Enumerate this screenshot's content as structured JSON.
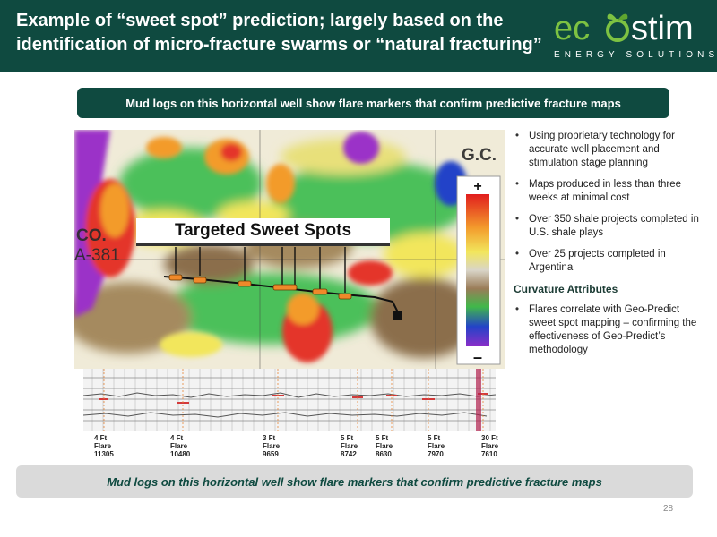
{
  "header": {
    "title": "Example of “sweet spot” prediction; largely based on the identification of micro-fracture swarms or “natural fracturing”",
    "logo_word": "ecostim",
    "logo_sub": "ENERGY SOLUTIONS"
  },
  "banner": {
    "text": "Mud logs on this horizontal well show flare markers that confirm predictive fracture maps"
  },
  "map": {
    "sweet_spot_label": "Targeted Sweet Spots",
    "label_co": "CO.",
    "label_a381": "A-381",
    "label_gc": "G.C.",
    "scale_plus": "+",
    "scale_minus": "–"
  },
  "flares": [
    {
      "size": "4 Ft",
      "word": "Flare",
      "depth": "11305"
    },
    {
      "size": "4 Ft",
      "word": "Flare",
      "depth": "10480"
    },
    {
      "size": "3 Ft",
      "word": "Flare",
      "depth": "9659"
    },
    {
      "size": "5 Ft",
      "word": "Flare",
      "depth": "8742"
    },
    {
      "size": "5 Ft",
      "word": "Flare",
      "depth": "8630"
    },
    {
      "size": "5 Ft",
      "word": "Flare",
      "depth": "7970"
    },
    {
      "size": "30 Ft",
      "word": "Flare",
      "depth": "7610"
    }
  ],
  "bullets": [
    "Using proprietary technology for accurate well placement and stimulation stage planning",
    "Maps produced in less than three weeks at minimal cost",
    "Over 350 shale projects completed in U.S. shale plays",
    "Over 25 projects completed in Argentina"
  ],
  "curvature": {
    "title": "Curvature Attributes",
    "bullet": "Flares correlate with Geo-Predict sweet spot mapping – confirming the effectiveness of Geo-Predict’s methodology"
  },
  "caption": {
    "text": "Mud logs on this horizontal well show flare markers that confirm predictive fracture maps"
  },
  "page_number": "28",
  "colors": {
    "header_bg": "#0f4a40",
    "brand_green": "#7dc242",
    "flare_marker": "#f0892a"
  }
}
